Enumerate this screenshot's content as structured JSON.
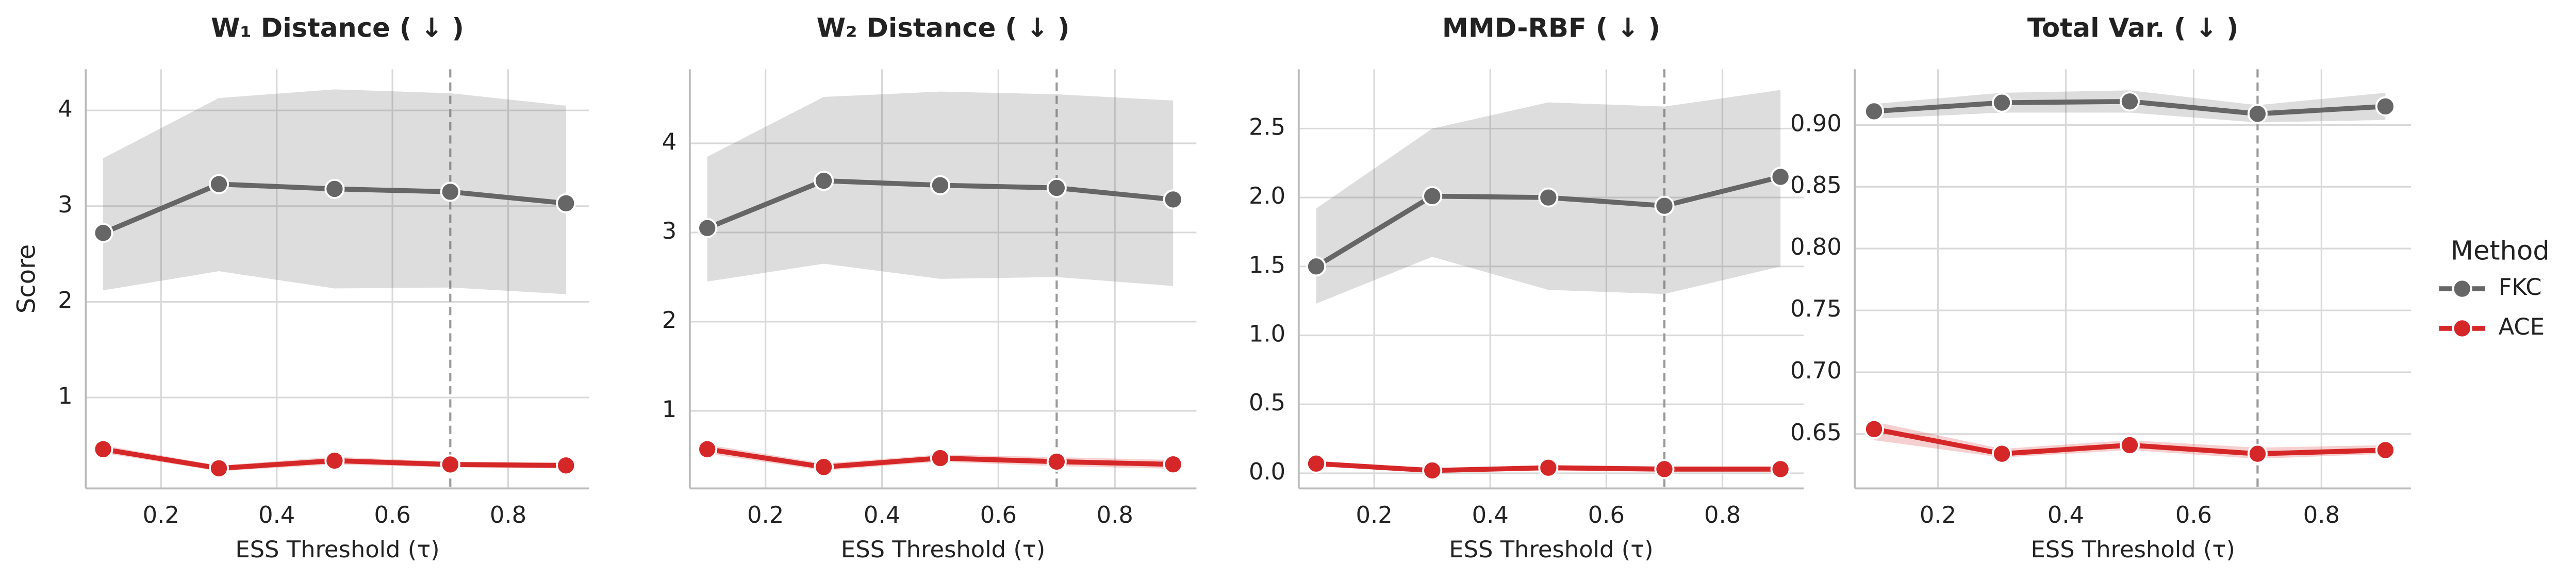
{
  "chart_data": [
    {
      "type": "line",
      "title": "W₁ Distance ( ↓ )",
      "xlabel": "ESS Threshold (τ)",
      "ylabel": "Score",
      "x": [
        0.1,
        0.3,
        0.5,
        0.7,
        0.9
      ],
      "xlim": [
        0.07,
        0.94
      ],
      "xticks": [
        0.2,
        0.4,
        0.6,
        0.8
      ],
      "ylim": [
        0.05,
        4.43
      ],
      "yticks": [
        1,
        2,
        3,
        4
      ],
      "vline": 0.7,
      "grid": true,
      "series": [
        {
          "name": "FKC",
          "color": "#666666",
          "values": [
            2.72,
            3.23,
            3.18,
            3.15,
            3.03
          ],
          "lower": [
            2.12,
            2.32,
            2.14,
            2.15,
            2.08
          ],
          "upper": [
            3.5,
            4.13,
            4.22,
            4.18,
            4.05
          ]
        },
        {
          "name": "ACE",
          "color": "#d62728",
          "values": [
            0.46,
            0.26,
            0.34,
            0.3,
            0.29
          ],
          "lower": [
            0.42,
            0.23,
            0.3,
            0.27,
            0.26
          ],
          "upper": [
            0.5,
            0.29,
            0.38,
            0.33,
            0.32
          ]
        }
      ]
    },
    {
      "type": "line",
      "title": "W₂ Distance ( ↓ )",
      "xlabel": "ESS Threshold (τ)",
      "x": [
        0.1,
        0.3,
        0.5,
        0.7,
        0.9
      ],
      "xlim": [
        0.07,
        0.94
      ],
      "xticks": [
        0.2,
        0.4,
        0.6,
        0.8
      ],
      "ylim": [
        0.13,
        4.83
      ],
      "yticks": [
        1,
        2,
        3,
        4
      ],
      "vline": 0.7,
      "grid": true,
      "series": [
        {
          "name": "FKC",
          "color": "#666666",
          "values": [
            3.05,
            3.58,
            3.53,
            3.5,
            3.37
          ],
          "lower": [
            2.45,
            2.65,
            2.48,
            2.5,
            2.4
          ],
          "upper": [
            3.85,
            4.52,
            4.58,
            4.55,
            4.48
          ]
        },
        {
          "name": "ACE",
          "color": "#d62728",
          "values": [
            0.57,
            0.37,
            0.47,
            0.43,
            0.4
          ],
          "lower": [
            0.52,
            0.33,
            0.43,
            0.38,
            0.35
          ],
          "upper": [
            0.62,
            0.41,
            0.51,
            0.48,
            0.45
          ]
        }
      ]
    },
    {
      "type": "line",
      "title": "MMD-RBF ( ↓ )",
      "xlabel": "ESS Threshold (τ)",
      "x": [
        0.1,
        0.3,
        0.5,
        0.7,
        0.9
      ],
      "xlim": [
        0.07,
        0.94
      ],
      "xticks": [
        0.2,
        0.4,
        0.6,
        0.8
      ],
      "ylim": [
        -0.11,
        2.93
      ],
      "yticks": [
        {
          "value": 0,
          "label": "0.0"
        },
        0.5,
        {
          "value": 1,
          "label": "1.0"
        },
        1.5,
        {
          "value": 2,
          "label": "2.0"
        },
        2.5
      ],
      "vline": 0.7,
      "grid": true,
      "series": [
        {
          "name": "FKC",
          "color": "#666666",
          "values": [
            1.5,
            2.01,
            2.0,
            1.94,
            2.15
          ],
          "lower": [
            1.23,
            1.57,
            1.33,
            1.3,
            1.5
          ],
          "upper": [
            1.92,
            2.5,
            2.69,
            2.66,
            2.78
          ]
        },
        {
          "name": "ACE",
          "color": "#d62728",
          "values": [
            0.07,
            0.02,
            0.04,
            0.03,
            0.03
          ],
          "lower": [
            0.05,
            0.01,
            0.02,
            0.01,
            0.01
          ],
          "upper": [
            0.09,
            0.03,
            0.06,
            0.05,
            0.05
          ]
        }
      ]
    },
    {
      "type": "line",
      "title": "Total Var. ( ↓ )",
      "xlabel": "ESS Threshold (τ)",
      "x": [
        0.1,
        0.3,
        0.5,
        0.7,
        0.9
      ],
      "xlim": [
        0.07,
        0.94
      ],
      "xticks": [
        0.2,
        0.4,
        0.6,
        0.8
      ],
      "ylim": [
        0.606,
        0.945
      ],
      "yticks": [
        0.65,
        {
          "value": 0.7,
          "label": "0.70"
        },
        0.75,
        {
          "value": 0.8,
          "label": "0.80"
        },
        0.85,
        {
          "value": 0.9,
          "label": "0.90"
        }
      ],
      "vline": 0.7,
      "grid": true,
      "series": [
        {
          "name": "FKC",
          "color": "#666666",
          "values": [
            0.911,
            0.918,
            0.919,
            0.909,
            0.915
          ],
          "lower": [
            0.905,
            0.91,
            0.91,
            0.902,
            0.904
          ],
          "upper": [
            0.917,
            0.926,
            0.928,
            0.916,
            0.926
          ]
        },
        {
          "name": "ACE",
          "color": "#d62728",
          "values": [
            0.654,
            0.634,
            0.641,
            0.634,
            0.637
          ],
          "lower": [
            0.645,
            0.631,
            0.637,
            0.63,
            0.634
          ],
          "upper": [
            0.66,
            0.638,
            0.645,
            0.639,
            0.641
          ]
        }
      ]
    }
  ],
  "legend": {
    "title": "Method",
    "position": "right"
  }
}
